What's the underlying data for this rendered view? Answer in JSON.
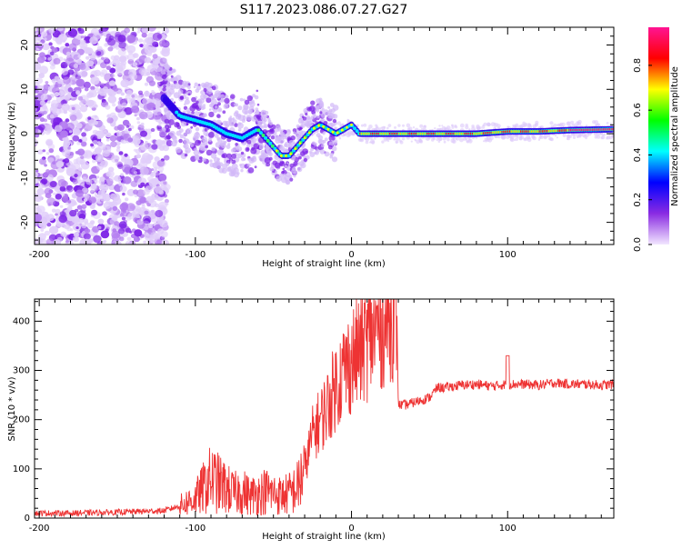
{
  "title": "S117.2023.086.07.27.G27",
  "chart_data": [
    {
      "type": "heatmap",
      "xlabel": "Height of straight line (km)",
      "ylabel": "Frequency (Hz)",
      "xlim": [
        -203,
        168
      ],
      "ylim": [
        -25,
        24
      ],
      "xticks": [
        -200,
        -100,
        0,
        100
      ],
      "yticks": [
        -20,
        -10,
        0,
        10,
        20
      ],
      "colorbar": {
        "label": "Normalized spectral amplitude",
        "range": [
          0,
          0.97
        ],
        "ticks": [
          0.0,
          0.2,
          0.4,
          0.6,
          0.8
        ],
        "colors": [
          "#f2e6ff",
          "#8a2be2",
          "#0000ff",
          "#00ffff",
          "#00ff00",
          "#ffff00",
          "#ff0000",
          "#ff1493"
        ]
      },
      "ridge": {
        "x": [
          -120,
          -110,
          -100,
          -90,
          -80,
          -70,
          -60,
          -50,
          -45,
          -40,
          -35,
          -30,
          -25,
          -20,
          -15,
          -10,
          -5,
          0,
          5,
          10,
          20,
          40,
          60,
          80,
          100,
          120,
          140,
          168
        ],
        "y": [
          8,
          4,
          3,
          2,
          0,
          -1,
          1,
          -3,
          -5,
          -5,
          -3,
          -1,
          1,
          2,
          1,
          0,
          1,
          2,
          0,
          0,
          0,
          0,
          0,
          0,
          0.5,
          0.5,
          0.8,
          1
        ]
      }
    },
    {
      "type": "line",
      "xlabel": "Height of straight line (km)",
      "ylabel": "SNR (10 * v/v)",
      "xlim": [
        -203,
        168
      ],
      "ylim": [
        0,
        445
      ],
      "xticks": [
        -200,
        -100,
        0,
        100
      ],
      "yticks": [
        0,
        100,
        200,
        300,
        400
      ],
      "color": "#ee3333",
      "x": [
        -203,
        -180,
        -150,
        -120,
        -110,
        -100,
        -95,
        -90,
        -85,
        -80,
        -75,
        -70,
        -65,
        -60,
        -55,
        -50,
        -45,
        -40,
        -35,
        -30,
        -25,
        -20,
        -15,
        -10,
        -5,
        0,
        5,
        10,
        15,
        20,
        25,
        29,
        30,
        35,
        40,
        45,
        50,
        55,
        60,
        70,
        80,
        90,
        100,
        110,
        120,
        130,
        140,
        150,
        160,
        168
      ],
      "y": [
        10,
        10,
        12,
        15,
        25,
        40,
        60,
        80,
        70,
        60,
        50,
        55,
        45,
        50,
        55,
        50,
        45,
        50,
        60,
        100,
        170,
        200,
        230,
        270,
        300,
        320,
        340,
        360,
        380,
        400,
        420,
        430,
        230,
        230,
        235,
        240,
        245,
        265,
        265,
        270,
        272,
        268,
        272,
        272,
        270,
        275,
        272,
        272,
        270,
        272
      ]
    }
  ]
}
